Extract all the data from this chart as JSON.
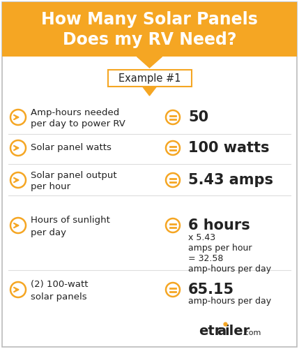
{
  "title_line1": "How Many Solar Panels",
  "title_line2": "Does my RV Need?",
  "title_bg_color": "#F5A623",
  "title_text_color": "#FFFFFF",
  "example_label": "Example #1",
  "body_bg_color": "#FFFFFF",
  "border_color": "#CCCCCC",
  "orange_color": "#F5A623",
  "dark_text": "#222222",
  "sep_color": "#DDDDDD",
  "rows": [
    {
      "label_line1": "Amp-hours needed",
      "label_line2": "per day to power RV",
      "value_bold": "50",
      "value_small": "",
      "extra_lines": []
    },
    {
      "label_line1": "Solar panel watts",
      "label_line2": "",
      "value_bold": "100 watts",
      "value_small": "",
      "extra_lines": []
    },
    {
      "label_line1": "Solar panel output",
      "label_line2": "per hour",
      "value_bold": "5.43 amps",
      "value_small": "",
      "extra_lines": []
    },
    {
      "label_line1": "Hours of sunlight",
      "label_line2": "per day",
      "value_bold": "6 hours",
      "value_small": "",
      "extra_lines": [
        "x 5.43",
        "amps per hour",
        "= 32.58",
        "amp-hours per day"
      ]
    },
    {
      "label_line1": "(2) 100-watt",
      "label_line2": "solar panels",
      "value_bold": "65.15",
      "value_small": "amp-hours per day",
      "extra_lines": []
    }
  ],
  "fig_width": 4.29,
  "fig_height": 5.0,
  "dpi": 100,
  "title_fontsize": 17,
  "label_fontsize": 9.5,
  "value_bold_fontsize": 15,
  "value_small_fontsize": 9,
  "example_fontsize": 10.5,
  "watermark_fontsize": 14,
  "watermark_small_fontsize": 8
}
